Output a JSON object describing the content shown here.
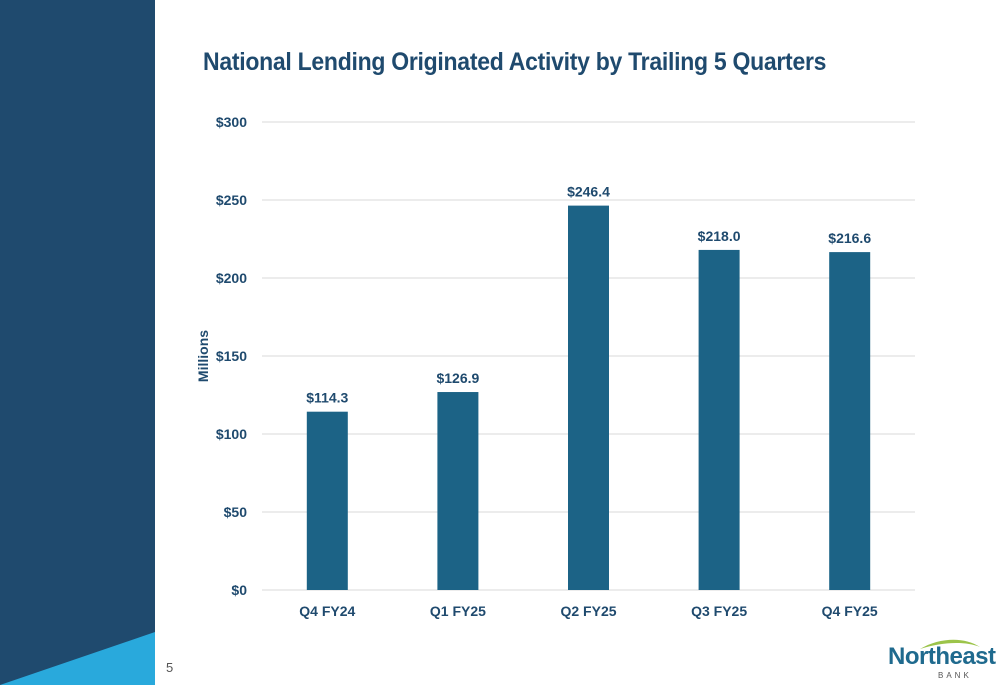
{
  "page": {
    "title": "National Lending Originated Activity by Trailing 5 Quarters",
    "page_number": "5"
  },
  "logo": {
    "word": "Northeast",
    "sub": "BANK"
  },
  "colors": {
    "sidebar": "#1f4a6e",
    "sidebar_accent": "#29a9dc",
    "bar": "#1c6386",
    "text": "#1f4a6e",
    "grid": "#d9d9d9",
    "logo_swoosh": "#9cc44a"
  },
  "chart_data": {
    "type": "bar",
    "title": "National Lending Originated Activity by Trailing 5 Quarters",
    "categories": [
      "Q4 FY24",
      "Q1 FY25",
      "Q2 FY25",
      "Q3 FY25",
      "Q4 FY25"
    ],
    "values": [
      114.3,
      126.9,
      246.4,
      218.0,
      216.6
    ],
    "data_labels": [
      "$114.3",
      "$126.9",
      "$246.4",
      "$218.0",
      "$216.6"
    ],
    "ylabel": "Millions",
    "xlabel": "",
    "ylim": [
      0,
      300
    ],
    "yticks": [
      0,
      50,
      100,
      150,
      200,
      250,
      300
    ],
    "ytick_labels": [
      "$0",
      "$50",
      "$100",
      "$150",
      "$200",
      "$250",
      "$300"
    ],
    "grid": true,
    "legend": "none"
  }
}
